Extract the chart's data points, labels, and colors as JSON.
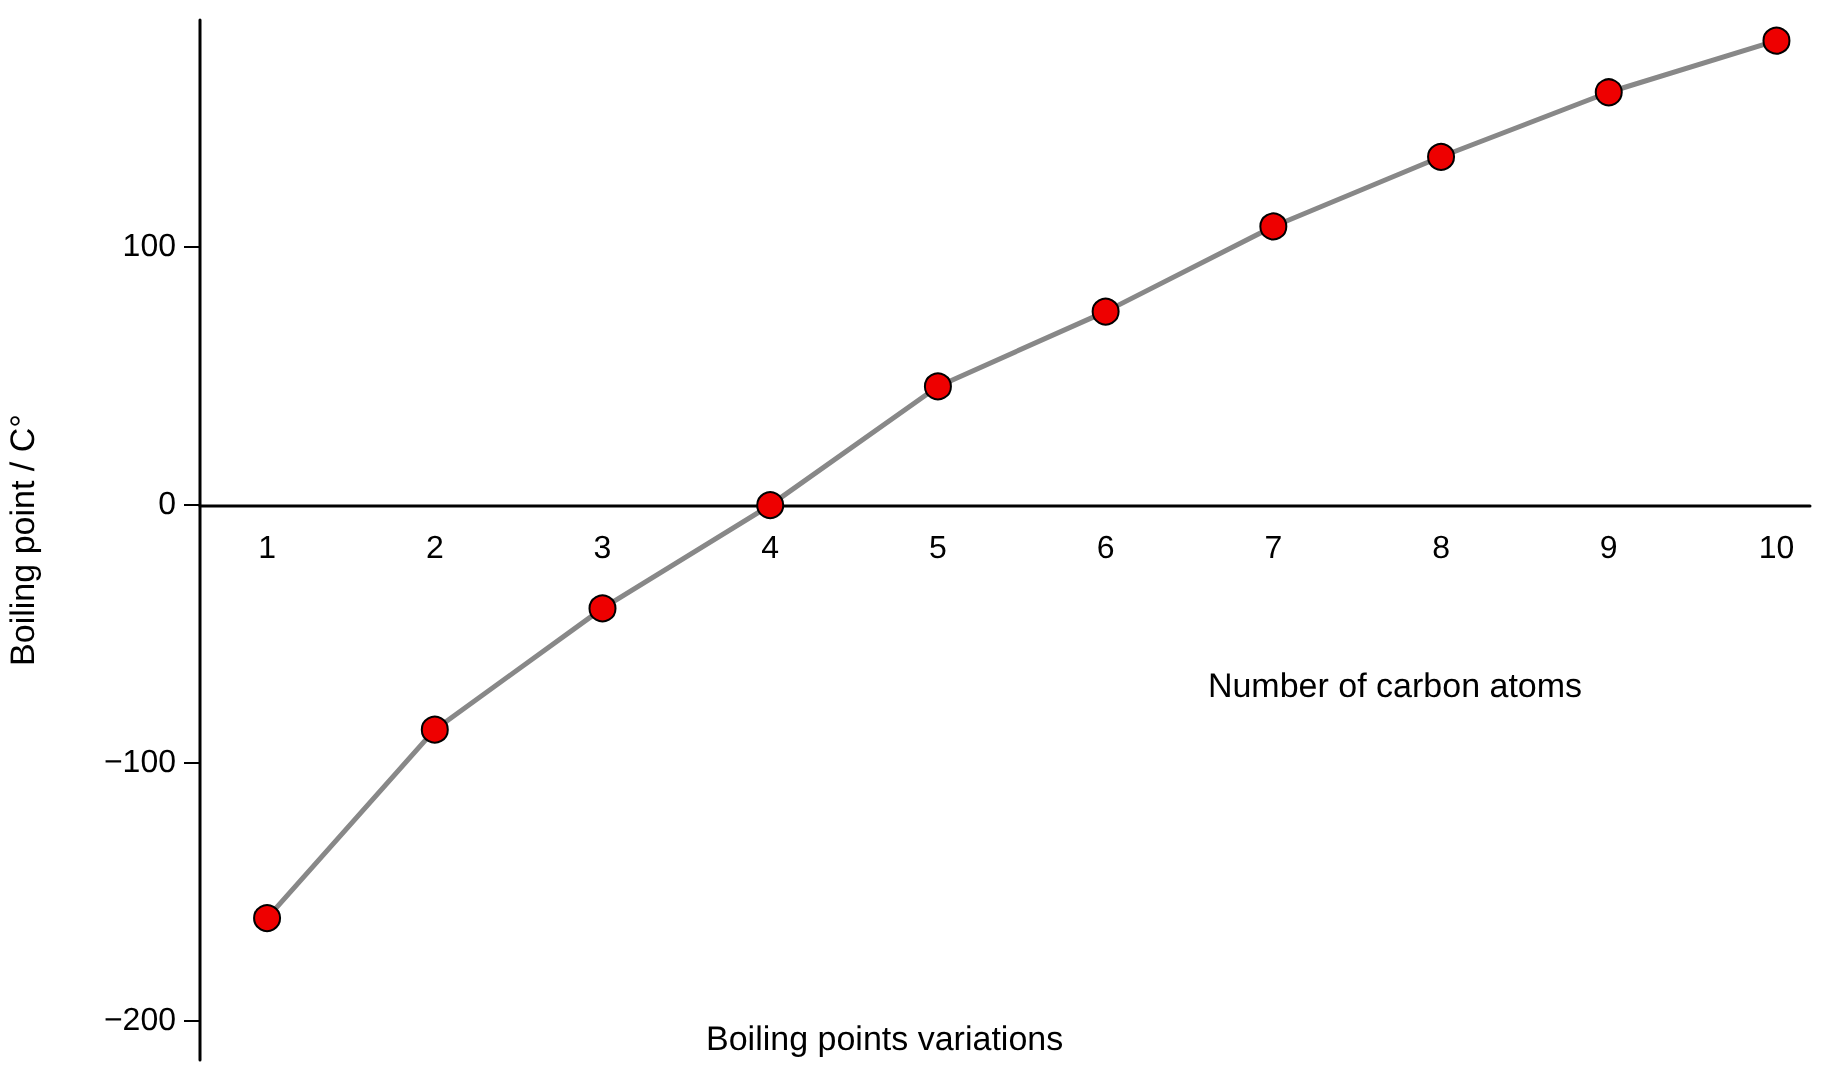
{
  "chart_data": {
    "type": "line",
    "title": "Boiling points variations",
    "xlabel": "Number of carbon atoms",
    "ylabel": "Boiling point / C°",
    "x": [
      1,
      2,
      3,
      4,
      5,
      6,
      7,
      8,
      9,
      10
    ],
    "series": [
      {
        "color": "#888888",
        "values": [
          -160,
          -87,
          -40,
          0,
          46,
          75,
          108,
          135,
          160,
          180
        ]
      }
    ],
    "marker": "circle",
    "line_style": "solid",
    "grid": false,
    "xlim": [
      0.6,
      10.2
    ],
    "xticks": [
      1,
      2,
      3,
      4,
      5,
      6,
      7,
      8,
      9,
      10
    ],
    "ylim": [
      -215,
      188
    ],
    "yticks": [
      -200,
      -100,
      0,
      100
    ]
  }
}
